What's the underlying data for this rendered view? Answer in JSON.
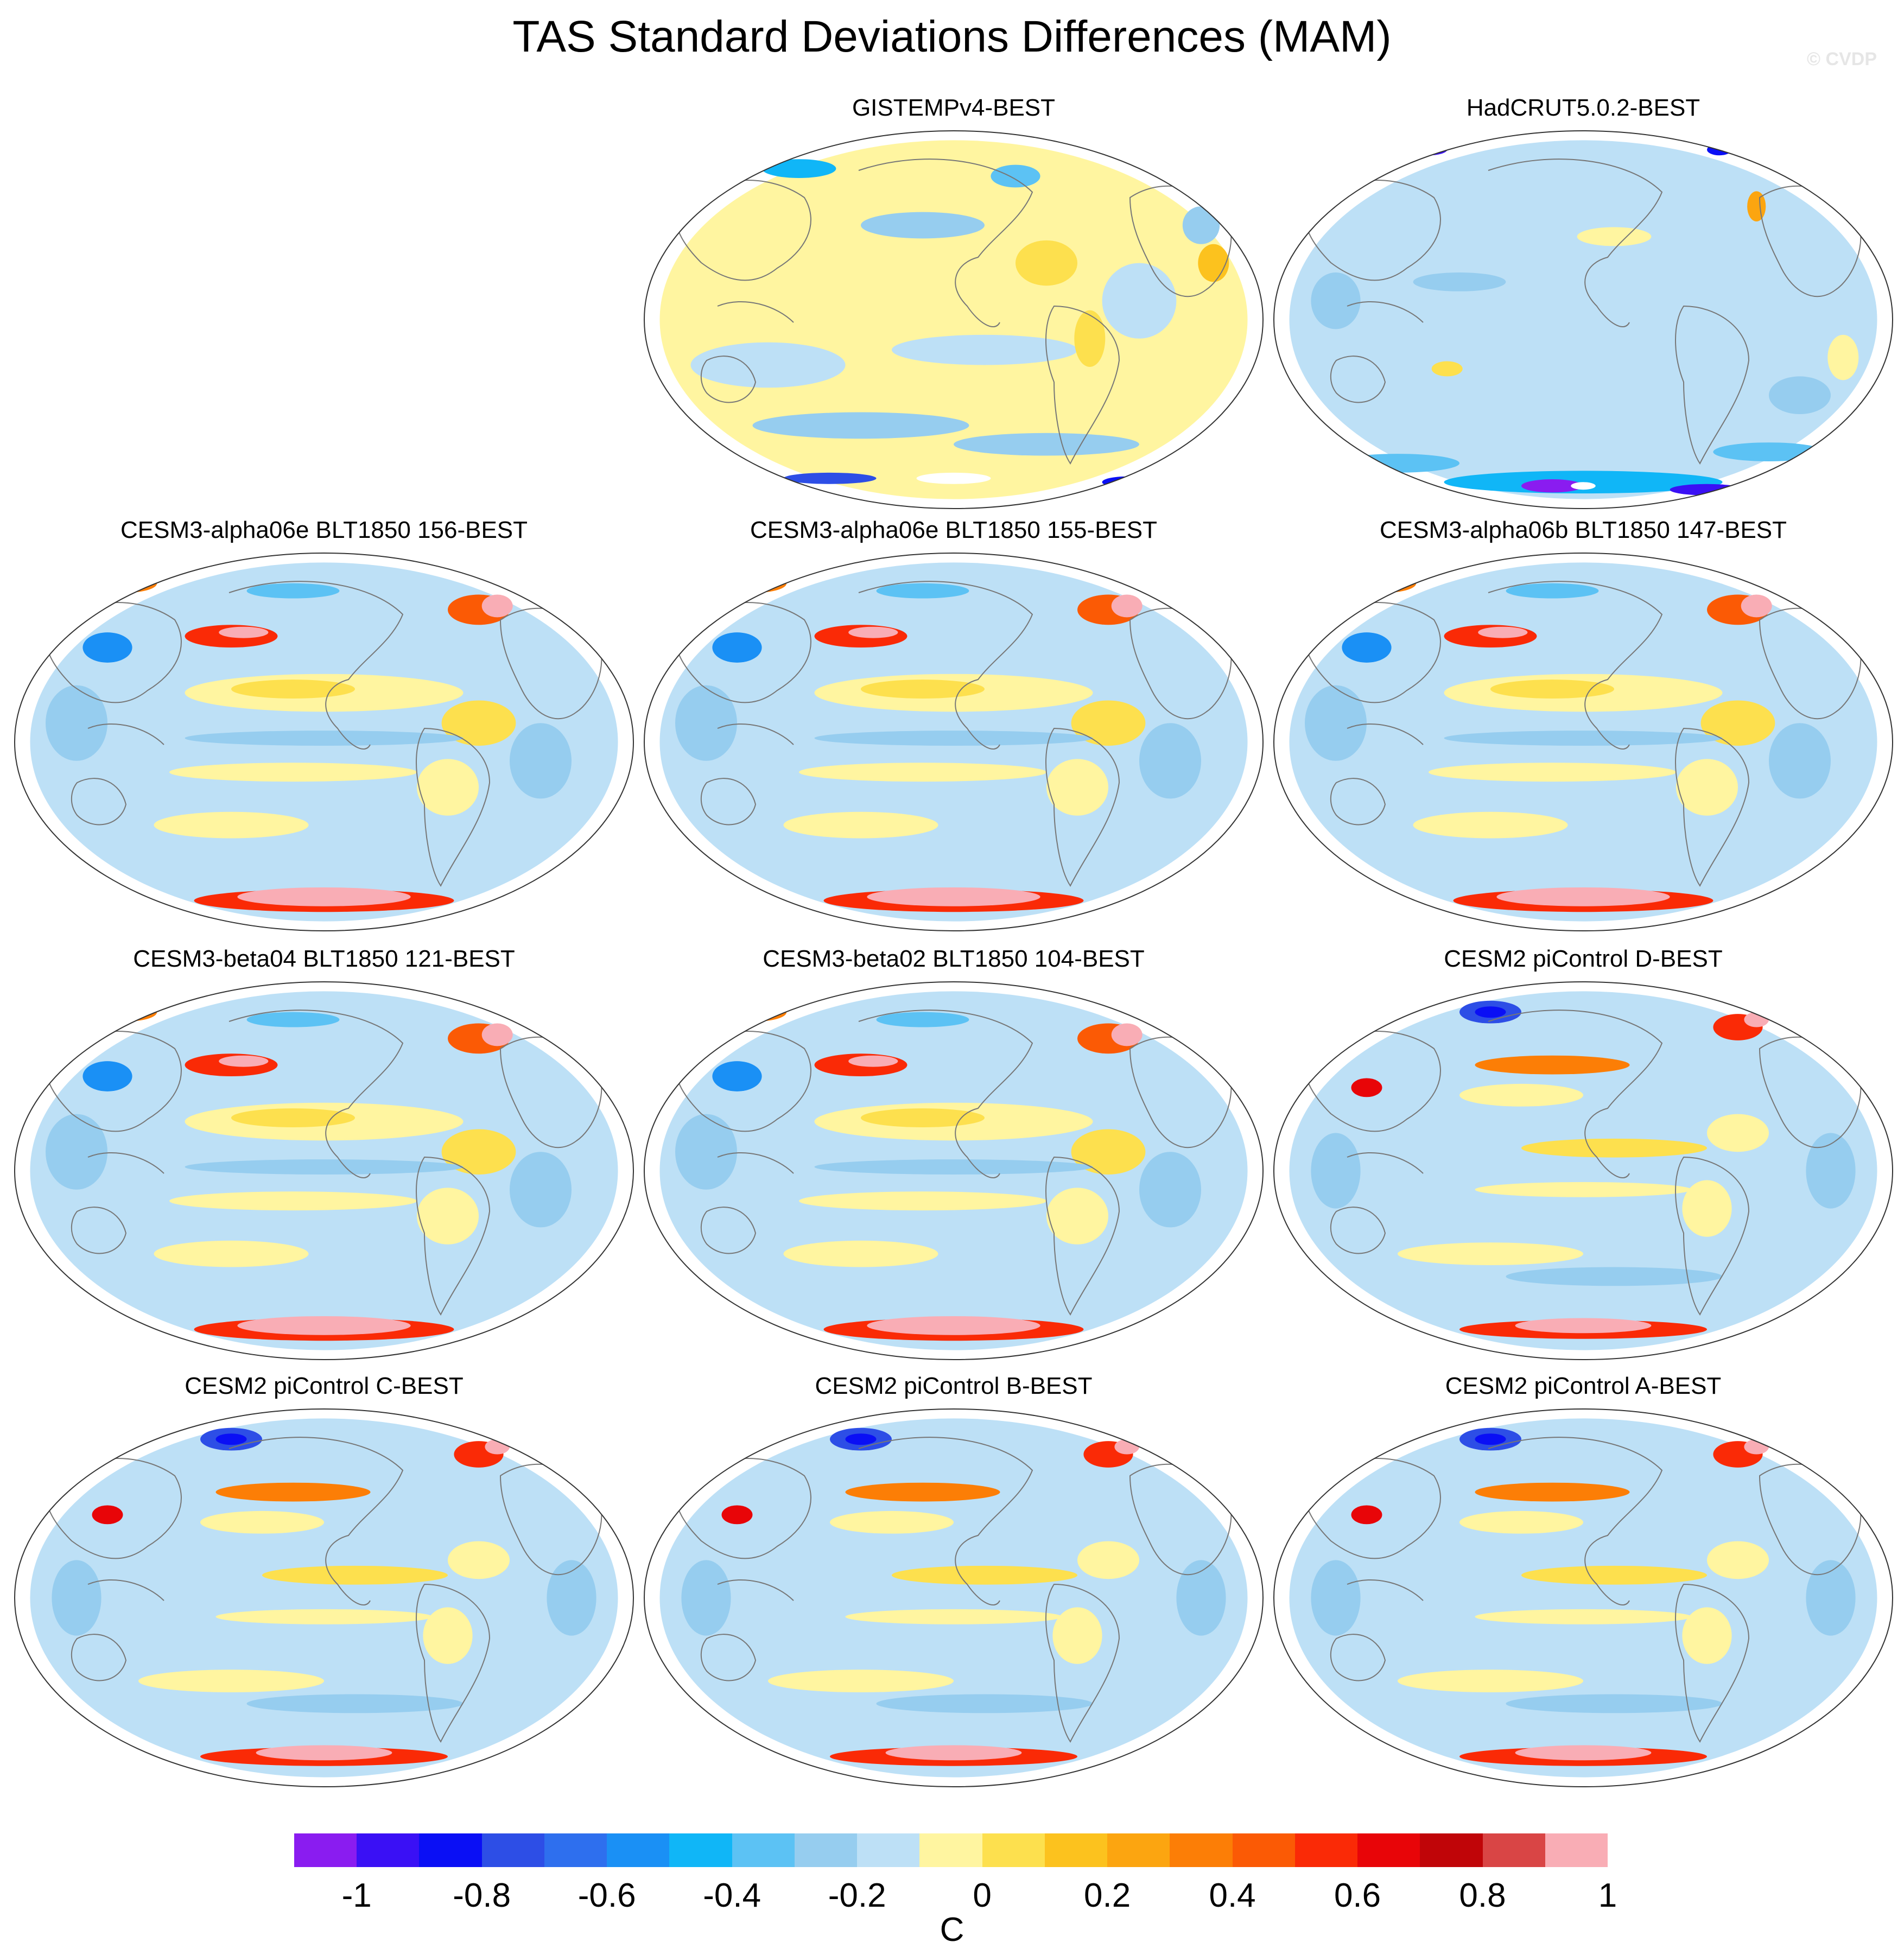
{
  "title": "TAS Standard Deviations Differences (MAM)",
  "watermark": "© CVDP",
  "panels": [
    {
      "label": "GISTEMPv4-BEST",
      "row": 0,
      "col": 1,
      "pattern": "gistemp"
    },
    {
      "label": "HadCRUT5.0.2-BEST",
      "row": 0,
      "col": 2,
      "pattern": "hadcrut"
    },
    {
      "label": "CESM3-alpha06e BLT1850 156-BEST",
      "row": 1,
      "col": 0,
      "pattern": "model"
    },
    {
      "label": "CESM3-alpha06e BLT1850 155-BEST",
      "row": 1,
      "col": 1,
      "pattern": "model"
    },
    {
      "label": "CESM3-alpha06b BLT1850 147-BEST",
      "row": 1,
      "col": 2,
      "pattern": "model"
    },
    {
      "label": "CESM3-beta04 BLT1850 121-BEST",
      "row": 2,
      "col": 0,
      "pattern": "model"
    },
    {
      "label": "CESM3-beta02 BLT1850 104-BEST",
      "row": 2,
      "col": 1,
      "pattern": "model"
    },
    {
      "label": "CESM2 piControl D-BEST",
      "row": 2,
      "col": 2,
      "pattern": "cesm2"
    },
    {
      "label": "CESM2 piControl C-BEST",
      "row": 3,
      "col": 0,
      "pattern": "cesm2"
    },
    {
      "label": "CESM2 piControl B-BEST",
      "row": 3,
      "col": 1,
      "pattern": "cesm2"
    },
    {
      "label": "CESM2 piControl A-BEST",
      "row": 3,
      "col": 2,
      "pattern": "cesm2"
    }
  ],
  "colorbar": {
    "unit": "C",
    "colors": [
      "#8a1cf0",
      "#3a10f5",
      "#0a0ff5",
      "#2d4ee6",
      "#2e6fee",
      "#1a90f5",
      "#10b6f7",
      "#5cc2f4",
      "#96cdef",
      "#bde0f6",
      "#fff5a0",
      "#fde04e",
      "#fcc21e",
      "#fca510",
      "#fc7e06",
      "#fb5a05",
      "#fa2a06",
      "#e80508",
      "#c00508",
      "#d94545",
      "#f9adb5"
    ],
    "tick_values": [
      -1,
      -0.8,
      -0.6,
      -0.4,
      -0.2,
      0,
      0.2,
      0.4,
      0.6,
      0.8,
      1
    ],
    "tick_labels": [
      "-1",
      "-0.8",
      "-0.6",
      "-0.4",
      "-0.2",
      "0",
      "0.2",
      "0.4",
      "0.6",
      "0.8",
      "1"
    ]
  }
}
